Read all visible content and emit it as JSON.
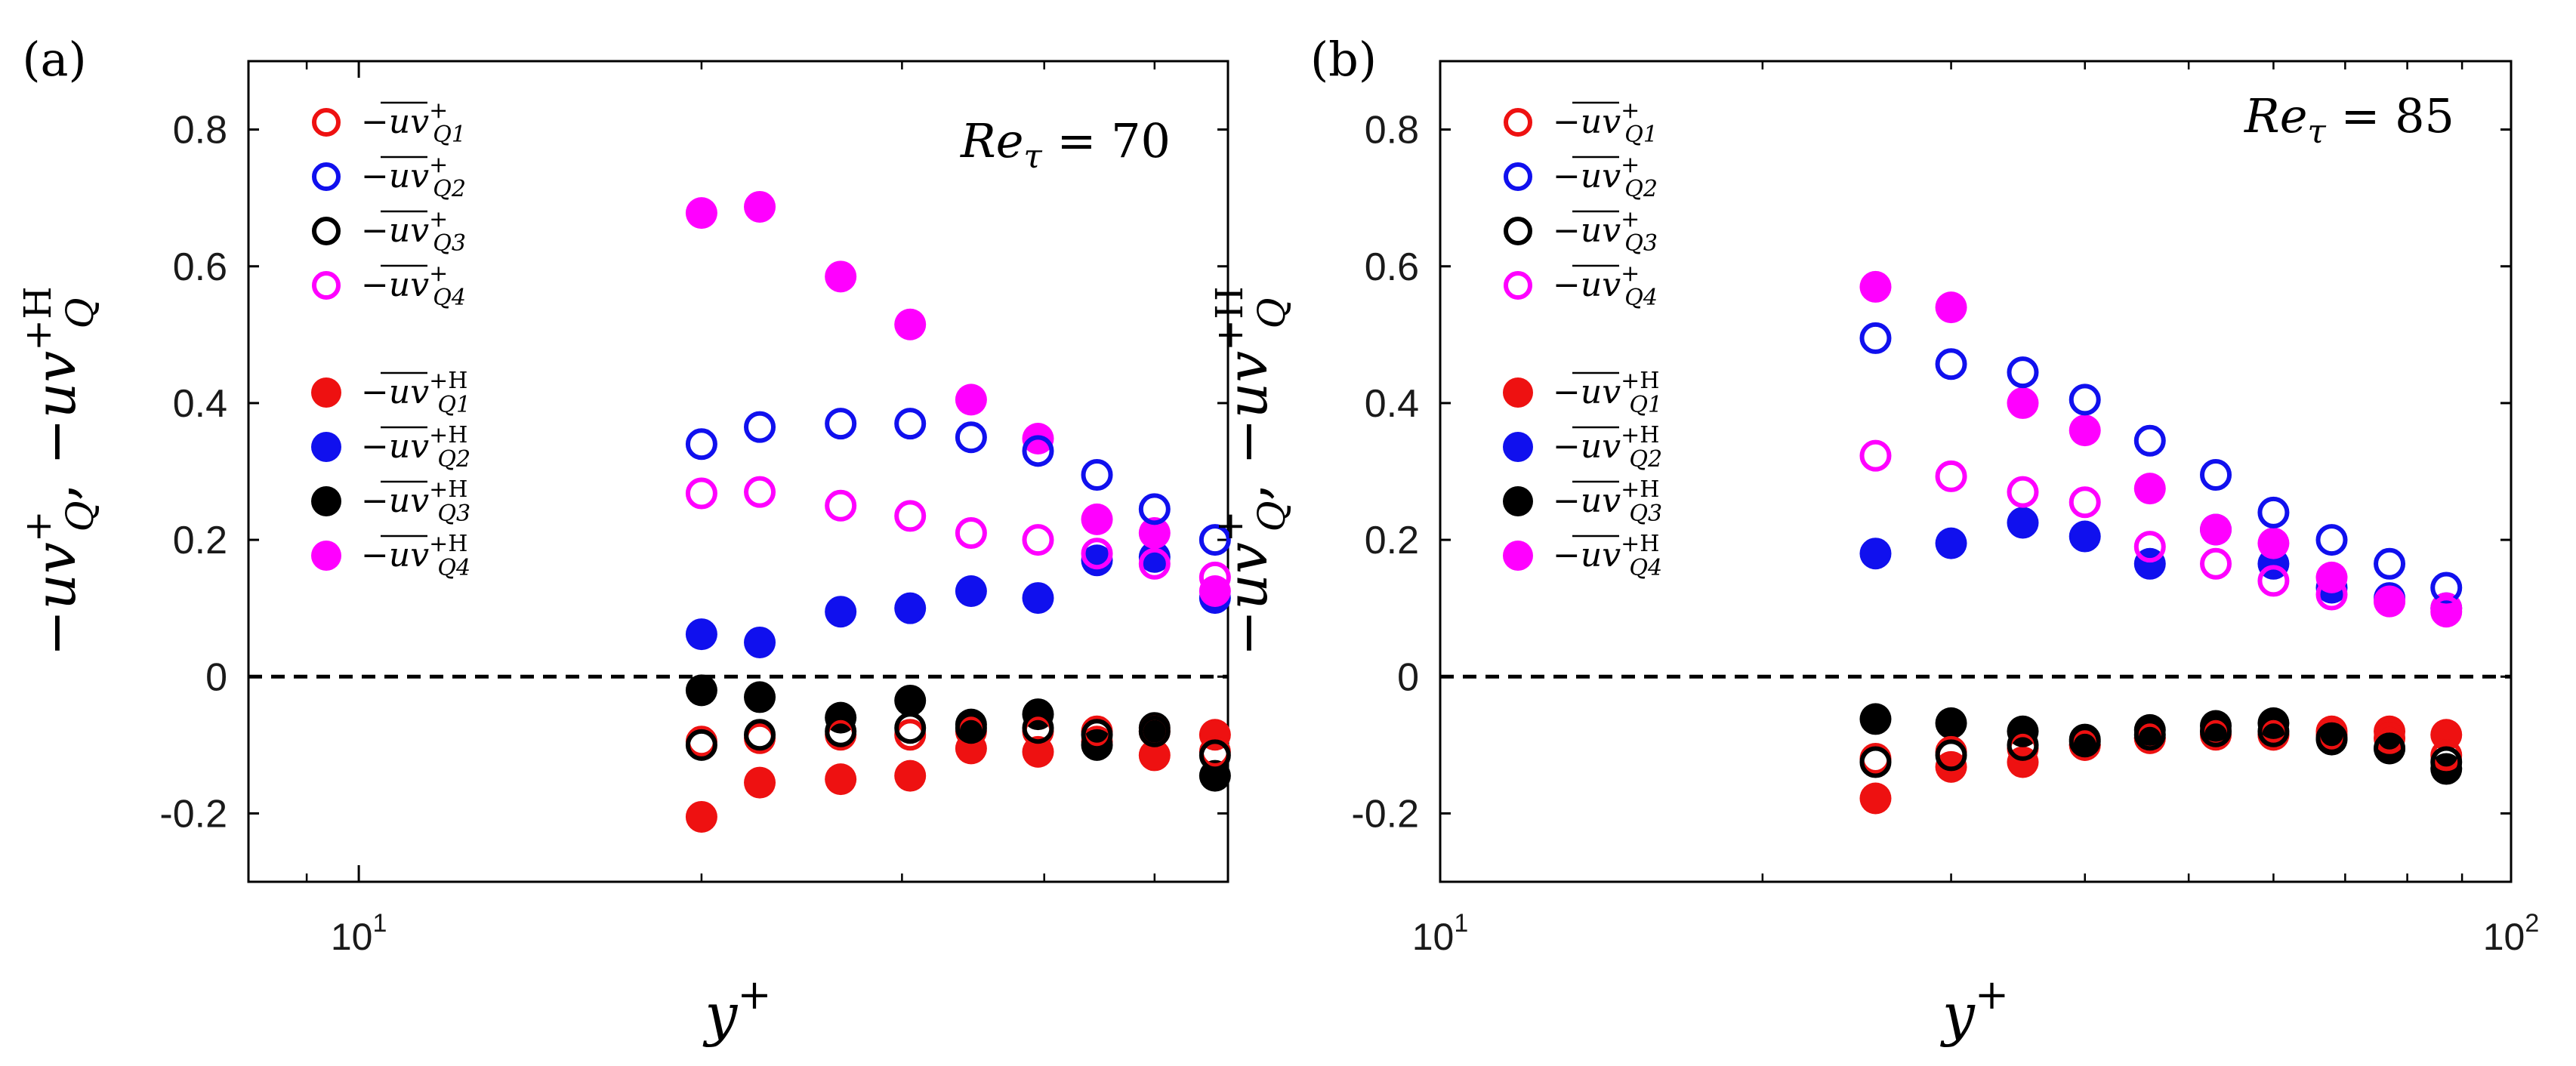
{
  "chart_data": [
    {
      "panel_label": "(a)",
      "type": "scatter",
      "annotation": {
        "base": "Re",
        "sub": "τ",
        "rest": " = 70"
      },
      "xlabel": {
        "base": "y",
        "sup": "+"
      },
      "ylabel": {
        "part1_base": "−uv",
        "part1_sup": "+",
        "part1_sub": "Q",
        "sep": ", ",
        "part2_base": "−uv",
        "part2_sup": "+H",
        "part2_sub": "Q"
      },
      "x_scale": "log",
      "xlim": [
        8,
        58
      ],
      "ylim": [
        -0.3,
        0.9
      ],
      "yticks": [
        -0.2,
        0,
        0.2,
        0.4,
        0.6,
        0.8
      ],
      "ytick_labels": [
        "-0.2",
        "0",
        "0.2",
        "0.4",
        "0.6",
        "0.8"
      ],
      "xticks": [
        10
      ],
      "xtick_labels": [
        {
          "base": "10",
          "sup": "1"
        }
      ],
      "reference_line": {
        "y": 0,
        "style": "dashed"
      },
      "grid": false,
      "legend_position": "top-left",
      "x": [
        20,
        22.5,
        26.5,
        30.5,
        34.5,
        39.5,
        44.5,
        50,
        56.5
      ],
      "series": [
        {
          "name": "−uv+Q1",
          "base": "−uv",
          "sup": "+",
          "sub": "Q1",
          "color": "#ee1111",
          "marker": "open",
          "values": [
            -0.095,
            -0.09,
            -0.085,
            -0.085,
            -0.08,
            -0.08,
            -0.08,
            -0.08,
            -0.11
          ]
        },
        {
          "name": "−uv+Q2",
          "base": "−uv",
          "sup": "+",
          "sub": "Q2",
          "color": "#1010ee",
          "marker": "open",
          "values": [
            0.34,
            0.365,
            0.37,
            0.37,
            0.35,
            0.33,
            0.295,
            0.245,
            0.2
          ]
        },
        {
          "name": "−uv+Q3",
          "base": "−uv",
          "sup": "+",
          "sub": "Q3",
          "color": "#000000",
          "marker": "open",
          "values": [
            -0.1,
            -0.085,
            -0.08,
            -0.075,
            -0.075,
            -0.075,
            -0.085,
            -0.08,
            -0.115
          ]
        },
        {
          "name": "−uv+Q4",
          "base": "−uv",
          "sup": "+",
          "sub": "Q4",
          "color": "#ff00ff",
          "marker": "open",
          "values": [
            0.268,
            0.27,
            0.25,
            0.235,
            0.21,
            0.2,
            0.18,
            0.165,
            0.145
          ]
        },
        {
          "name": "−uv+HQ1",
          "base": "−uv",
          "sup": "+H",
          "sub": "Q1",
          "color": "#ee1111",
          "marker": "filled",
          "values": [
            -0.205,
            -0.155,
            -0.15,
            -0.145,
            -0.105,
            -0.11,
            -0.095,
            -0.115,
            -0.085
          ]
        },
        {
          "name": "−uv+HQ2",
          "base": "−uv",
          "sup": "+H",
          "sub": "Q2",
          "color": "#1010ee",
          "marker": "filled",
          "values": [
            0.062,
            0.05,
            0.095,
            0.1,
            0.125,
            0.115,
            0.17,
            0.175,
            0.115
          ]
        },
        {
          "name": "−uv+HQ3",
          "base": "−uv",
          "sup": "+H",
          "sub": "Q3",
          "color": "#000000",
          "marker": "filled",
          "values": [
            -0.02,
            -0.03,
            -0.06,
            -0.035,
            -0.07,
            -0.055,
            -0.1,
            -0.075,
            -0.145
          ]
        },
        {
          "name": "−uv+HQ4",
          "base": "−uv",
          "sup": "+H",
          "sub": "Q4",
          "color": "#ff00ff",
          "marker": "filled",
          "values": [
            0.678,
            0.687,
            0.585,
            0.515,
            0.405,
            0.348,
            0.23,
            0.21,
            0.125
          ]
        }
      ]
    },
    {
      "panel_label": "(b)",
      "type": "scatter",
      "annotation": {
        "base": "Re",
        "sub": "τ",
        "rest": " = 85"
      },
      "xlabel": {
        "base": "y",
        "sup": "+"
      },
      "ylabel": {
        "part1_base": "−uv",
        "part1_sup": "+",
        "part1_sub": "Q",
        "sep": ", ",
        "part2_base": "−uv",
        "part2_sup": "+H",
        "part2_sub": "Q"
      },
      "x_scale": "log",
      "xlim": [
        10,
        100
      ],
      "ylim": [
        -0.3,
        0.9
      ],
      "yticks": [
        -0.2,
        0,
        0.2,
        0.4,
        0.6,
        0.8
      ],
      "ytick_labels": [
        "-0.2",
        "0",
        "0.2",
        "0.4",
        "0.6",
        "0.8"
      ],
      "xticks": [
        10,
        100
      ],
      "xtick_labels": [
        {
          "base": "10",
          "sup": "1"
        },
        {
          "base": "10",
          "sup": "2"
        }
      ],
      "reference_line": {
        "y": 0,
        "style": "dashed"
      },
      "grid": false,
      "legend_position": "top-left",
      "x": [
        25.5,
        30,
        35,
        40,
        46,
        53,
        60,
        68,
        77,
        87
      ],
      "series": [
        {
          "name": "−uv+Q1",
          "base": "−uv",
          "sup": "+",
          "sub": "Q1",
          "color": "#ee1111",
          "marker": "open",
          "values": [
            -0.12,
            -0.11,
            -0.105,
            -0.1,
            -0.09,
            -0.085,
            -0.085,
            -0.085,
            -0.09,
            -0.115
          ]
        },
        {
          "name": "−uv+Q2",
          "base": "−uv",
          "sup": "+",
          "sub": "Q2",
          "color": "#1010ee",
          "marker": "open",
          "values": [
            0.495,
            0.457,
            0.445,
            0.405,
            0.345,
            0.295,
            0.24,
            0.2,
            0.165,
            0.13
          ]
        },
        {
          "name": "−uv+Q3",
          "base": "−uv",
          "sup": "+",
          "sub": "Q3",
          "color": "#000000",
          "marker": "open",
          "values": [
            -0.125,
            -0.115,
            -0.1,
            -0.095,
            -0.085,
            -0.08,
            -0.08,
            -0.09,
            -0.105,
            -0.125
          ]
        },
        {
          "name": "−uv+Q4",
          "base": "−uv",
          "sup": "+",
          "sub": "Q4",
          "color": "#ff00ff",
          "marker": "open",
          "values": [
            0.323,
            0.293,
            0.27,
            0.255,
            0.19,
            0.165,
            0.14,
            0.12,
            0.11,
            0.095
          ]
        },
        {
          "name": "−uv+HQ1",
          "base": "−uv",
          "sup": "+H",
          "sub": "Q1",
          "color": "#ee1111",
          "marker": "filled",
          "values": [
            -0.178,
            -0.132,
            -0.125,
            -0.1,
            -0.09,
            -0.08,
            -0.085,
            -0.08,
            -0.08,
            -0.085
          ]
        },
        {
          "name": "−uv+HQ2",
          "base": "−uv",
          "sup": "+H",
          "sub": "Q2",
          "color": "#1010ee",
          "marker": "filled",
          "values": [
            0.18,
            0.195,
            0.225,
            0.205,
            0.165,
            0.215,
            0.165,
            0.13,
            0.115,
            0.1
          ]
        },
        {
          "name": "−uv+HQ3",
          "base": "−uv",
          "sup": "+H",
          "sub": "Q3",
          "color": "#000000",
          "marker": "filled",
          "values": [
            -0.062,
            -0.068,
            -0.08,
            -0.092,
            -0.078,
            -0.072,
            -0.068,
            -0.092,
            -0.105,
            -0.135
          ]
        },
        {
          "name": "−uv+HQ4",
          "base": "−uv",
          "sup": "+H",
          "sub": "Q4",
          "color": "#ff00ff",
          "marker": "filled",
          "values": [
            0.57,
            0.54,
            0.4,
            0.36,
            0.275,
            0.215,
            0.195,
            0.145,
            0.11,
            0.1
          ]
        }
      ]
    }
  ]
}
